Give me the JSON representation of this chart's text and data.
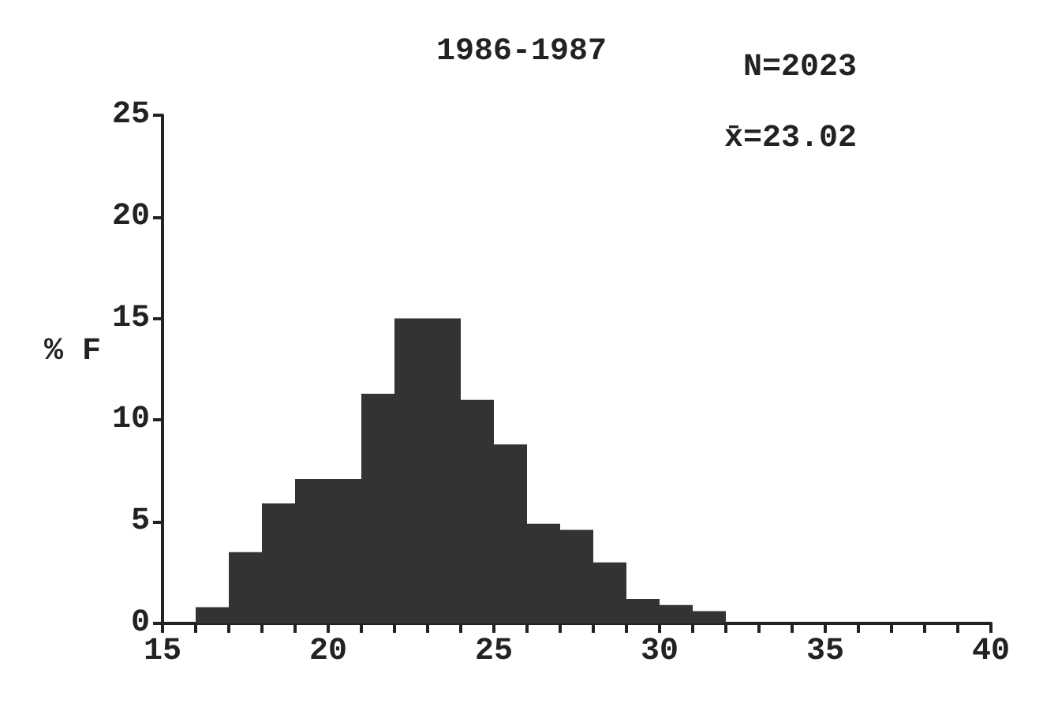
{
  "chart_data": {
    "type": "histogram",
    "title": "1986-1987",
    "ylabel": "% F",
    "bins": [
      16,
      17,
      18,
      19,
      20,
      21,
      22,
      23,
      24,
      25,
      26,
      27,
      28,
      29,
      30,
      31,
      32
    ],
    "values": [
      0.8,
      3.5,
      5.9,
      7.1,
      7.1,
      11.3,
      15,
      15,
      11,
      8.8,
      4.9,
      4.6,
      3,
      1.2,
      0.9,
      0.6
    ],
    "color": "#333333",
    "xlim": [
      15,
      40
    ],
    "xticks": [
      15,
      {
        "value": 16,
        "label": null
      },
      {
        "value": 17,
        "label": null
      },
      {
        "value": 18,
        "label": null
      },
      {
        "value": 19,
        "label": null
      },
      20,
      {
        "value": 21,
        "label": null
      },
      {
        "value": 22,
        "label": null
      },
      {
        "value": 23,
        "label": null
      },
      {
        "value": 24,
        "label": null
      },
      25,
      {
        "value": 26,
        "label": null
      },
      {
        "value": 27,
        "label": null
      },
      {
        "value": 28,
        "label": null
      },
      {
        "value": 29,
        "label": null
      },
      30,
      {
        "value": 31,
        "label": null
      },
      {
        "value": 32,
        "label": null
      },
      {
        "value": 33,
        "label": null
      },
      {
        "value": 34,
        "label": null
      },
      35,
      {
        "value": 36,
        "label": null
      },
      {
        "value": 37,
        "label": null
      },
      {
        "value": 38,
        "label": null
      },
      {
        "value": 39,
        "label": null
      },
      40
    ],
    "ylim": [
      0,
      25
    ],
    "yticks": [
      0,
      5,
      10,
      15,
      20,
      25
    ],
    "annotations": [
      "N=2023",
      "x̄=23.02"
    ],
    "grid": false
  }
}
